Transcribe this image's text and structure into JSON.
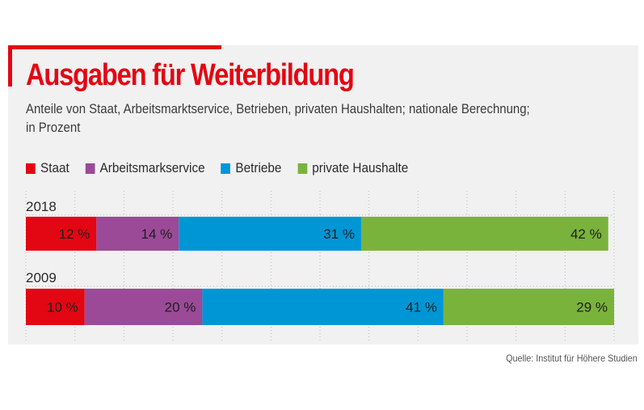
{
  "title": "Ausgaben für Weiterbildung",
  "subtitle_line1": "Anteile von Staat, Arbeitsmarktservice, Betrieben, privaten Haushalten; nationale Berechnung;",
  "subtitle_line2": "in Prozent",
  "source": "Quelle: Institut für Höhere Studien",
  "colors": {
    "accent": "#e30613",
    "staat": "#e30613",
    "arbeitsmarkservice": "#9b4a97",
    "betriebe": "#0096d6",
    "private_haushalte": "#7ab33c"
  },
  "chart_data": {
    "type": "bar",
    "orientation": "horizontal",
    "stacked": true,
    "title": "Ausgaben für Weiterbildung",
    "categories": [
      "2018",
      "2009"
    ],
    "unit": "%",
    "legend_position": "top-left",
    "grid": true,
    "xlim": [
      0,
      100
    ],
    "series": [
      {
        "name": "Staat",
        "key": "staat",
        "values": [
          12,
          10
        ],
        "labels": [
          "12 %",
          "10 %"
        ]
      },
      {
        "name": "Arbeitsmarkservice",
        "key": "arbeitsmarkservice",
        "values": [
          14,
          20
        ],
        "labels": [
          "14 %",
          "20 %"
        ]
      },
      {
        "name": "Betriebe",
        "key": "betriebe",
        "values": [
          31,
          41
        ],
        "labels": [
          "31 %",
          "41 %"
        ]
      },
      {
        "name": "private Haushalte",
        "key": "private_haushalte",
        "values": [
          42,
          29
        ],
        "labels": [
          "42 %",
          "29 %"
        ]
      }
    ]
  }
}
